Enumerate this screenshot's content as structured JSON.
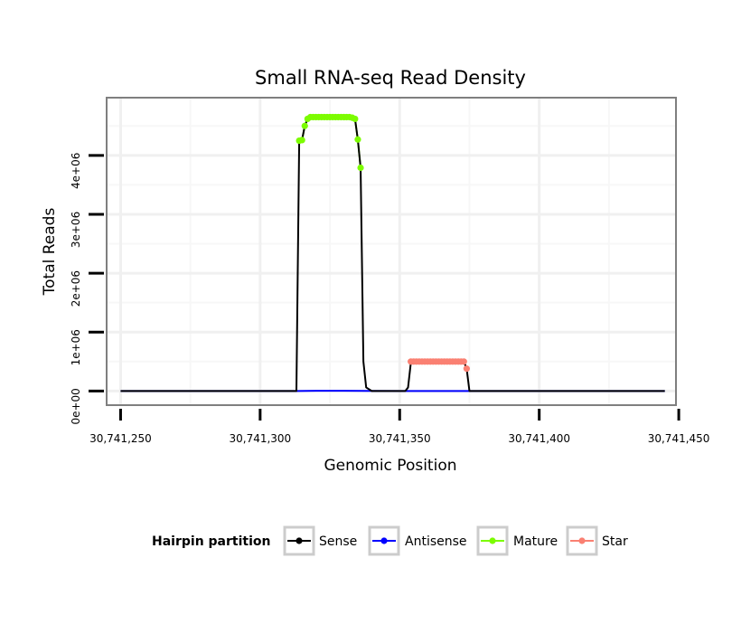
{
  "chart_data": {
    "type": "line",
    "title": "Small RNA-seq Read Density",
    "xlabel": "Genomic Position",
    "ylabel": "Total Reads",
    "xlim": [
      30741245,
      30741449
    ],
    "ylim": [
      -240000,
      4980000
    ],
    "x_ticks": [
      30741250,
      30741300,
      30741350,
      30741400,
      30741450
    ],
    "x_tick_labels": [
      "30,741,250",
      "30,741,300",
      "30,741,350",
      "30,741,400",
      "30,741,450"
    ],
    "y_ticks": [
      0,
      1000000,
      2000000,
      3000000,
      4000000
    ],
    "y_tick_labels": [
      "0e+00",
      "1e+06",
      "2e+06",
      "3e+06",
      "4e+06"
    ],
    "grid": true,
    "legend_title": "Hairpin partition",
    "legend_position": "bottom",
    "series": [
      {
        "name": "Sense",
        "color": "#000000",
        "marker": "none",
        "x": [
          30741250,
          30741313,
          30741314,
          30741315,
          30741316,
          30741317,
          30741318,
          30741320,
          30741325,
          30741330,
          30741333,
          30741334,
          30741335,
          30741336,
          30741337,
          30741338,
          30741340,
          30741352,
          30741353,
          30741354,
          30741356,
          30741365,
          30741372,
          30741373,
          30741374,
          30741375,
          30741376,
          30741390,
          30741445
        ],
        "values": [
          0,
          0,
          4250000,
          4260000,
          4500000,
          4620000,
          4650000,
          4650000,
          4650000,
          4650000,
          4640000,
          4620000,
          4270000,
          3790000,
          500000,
          60000,
          0,
          0,
          60000,
          480000,
          500000,
          500000,
          500000,
          500000,
          380000,
          0,
          0,
          0,
          0
        ]
      },
      {
        "name": "Antisense",
        "color": "#0000ff",
        "marker": "none",
        "x": [
          30741250,
          30741313,
          30741320,
          30741330,
          30741338,
          30741350,
          30741376,
          30741445
        ],
        "values": [
          0,
          0,
          3000,
          3000,
          2000,
          0,
          0,
          0
        ]
      },
      {
        "name": "Mature",
        "color": "#7cfc00",
        "marker": "circle",
        "x": [
          30741314,
          30741315,
          30741316,
          30741317,
          30741318,
          30741319,
          30741320,
          30741321,
          30741322,
          30741323,
          30741324,
          30741325,
          30741326,
          30741327,
          30741328,
          30741329,
          30741330,
          30741331,
          30741332,
          30741333,
          30741334,
          30741335,
          30741336
        ],
        "values": [
          4250000,
          4260000,
          4500000,
          4620000,
          4650000,
          4650000,
          4650000,
          4650000,
          4650000,
          4650000,
          4650000,
          4650000,
          4650000,
          4650000,
          4650000,
          4650000,
          4650000,
          4650000,
          4650000,
          4640000,
          4620000,
          4270000,
          3790000
        ]
      },
      {
        "name": "Star",
        "color": "#fa8072",
        "marker": "circle",
        "x": [
          30741354,
          30741355,
          30741356,
          30741357,
          30741358,
          30741359,
          30741360,
          30741361,
          30741362,
          30741363,
          30741364,
          30741365,
          30741366,
          30741367,
          30741368,
          30741369,
          30741370,
          30741371,
          30741372,
          30741373,
          30741374
        ],
        "values": [
          500000,
          500000,
          500000,
          500000,
          500000,
          500000,
          500000,
          500000,
          500000,
          500000,
          500000,
          500000,
          500000,
          500000,
          500000,
          500000,
          500000,
          500000,
          500000,
          500000,
          380000
        ]
      }
    ]
  }
}
